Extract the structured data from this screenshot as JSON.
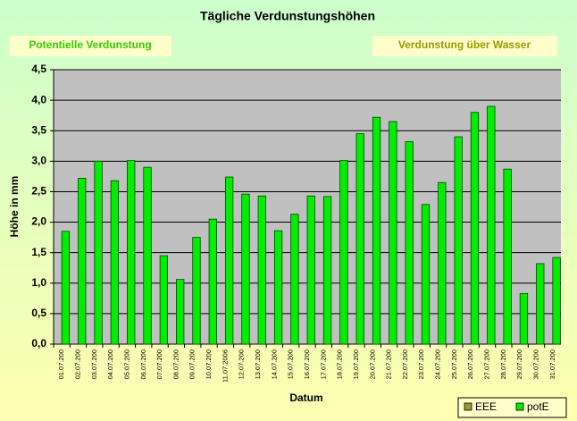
{
  "chart_data": {
    "type": "bar",
    "title": "Tägliche Verdunstungshöhen",
    "annotations": [
      "Potentielle Verdunstung",
      "Verdunstung über Wasser"
    ],
    "xlabel": "Datum",
    "ylabel": "Höhe in mm",
    "categories": [
      "01.07.200",
      "02.07.200",
      "03.07.200",
      "04.07.200",
      "05.07.200",
      "06.07.200",
      "07.07.200",
      "08.07.200",
      "09.07.200",
      "10.07.200",
      "11.07.2006",
      "12.07.200",
      "13.07.200",
      "14.07.200",
      "15.07.200",
      "16.07.200",
      "17.07.200",
      "18.07.200",
      "19.07.200",
      "20.07.200",
      "21.07.200",
      "22.07.200",
      "23.07.200",
      "24.07.200",
      "25.07.200",
      "26.07.200",
      "27.07.200",
      "28.07.200",
      "29.07.200",
      "30.07.200",
      "31.07.200"
    ],
    "series": [
      {
        "name": "EEE",
        "color": "#999933",
        "values": [
          null,
          null,
          null,
          null,
          null,
          null,
          null,
          null,
          null,
          null,
          null,
          null,
          null,
          null,
          null,
          null,
          null,
          null,
          null,
          null,
          null,
          null,
          null,
          null,
          null,
          null,
          null,
          null,
          null,
          null,
          null
        ]
      },
      {
        "name": "potE",
        "color": "#00ee00",
        "values": [
          1.85,
          2.72,
          3.0,
          2.68,
          3.01,
          2.9,
          1.45,
          1.06,
          1.75,
          2.05,
          2.74,
          2.46,
          2.43,
          1.86,
          2.13,
          2.43,
          2.42,
          3.01,
          3.45,
          3.72,
          3.65,
          3.32,
          2.29,
          2.65,
          3.4,
          3.8,
          3.9,
          2.87,
          0.83,
          1.32,
          1.42
        ]
      }
    ],
    "ylim": [
      0,
      4.5
    ],
    "yticks": [
      {
        "value": 0,
        "label": "0,0"
      },
      {
        "value": 0.5,
        "label": "0,5"
      },
      {
        "value": 1,
        "label": "1,0"
      },
      {
        "value": 1.5,
        "label": "1,5"
      },
      {
        "value": 2,
        "label": "2,0"
      },
      {
        "value": 2.5,
        "label": "2,5"
      },
      {
        "value": 3,
        "label": "3,0"
      },
      {
        "value": 3.5,
        "label": "3,5"
      },
      {
        "value": 4,
        "label": "4,0"
      },
      {
        "value": 4.5,
        "label": "4,5"
      }
    ],
    "grid": true,
    "legend": "bottom-right"
  }
}
